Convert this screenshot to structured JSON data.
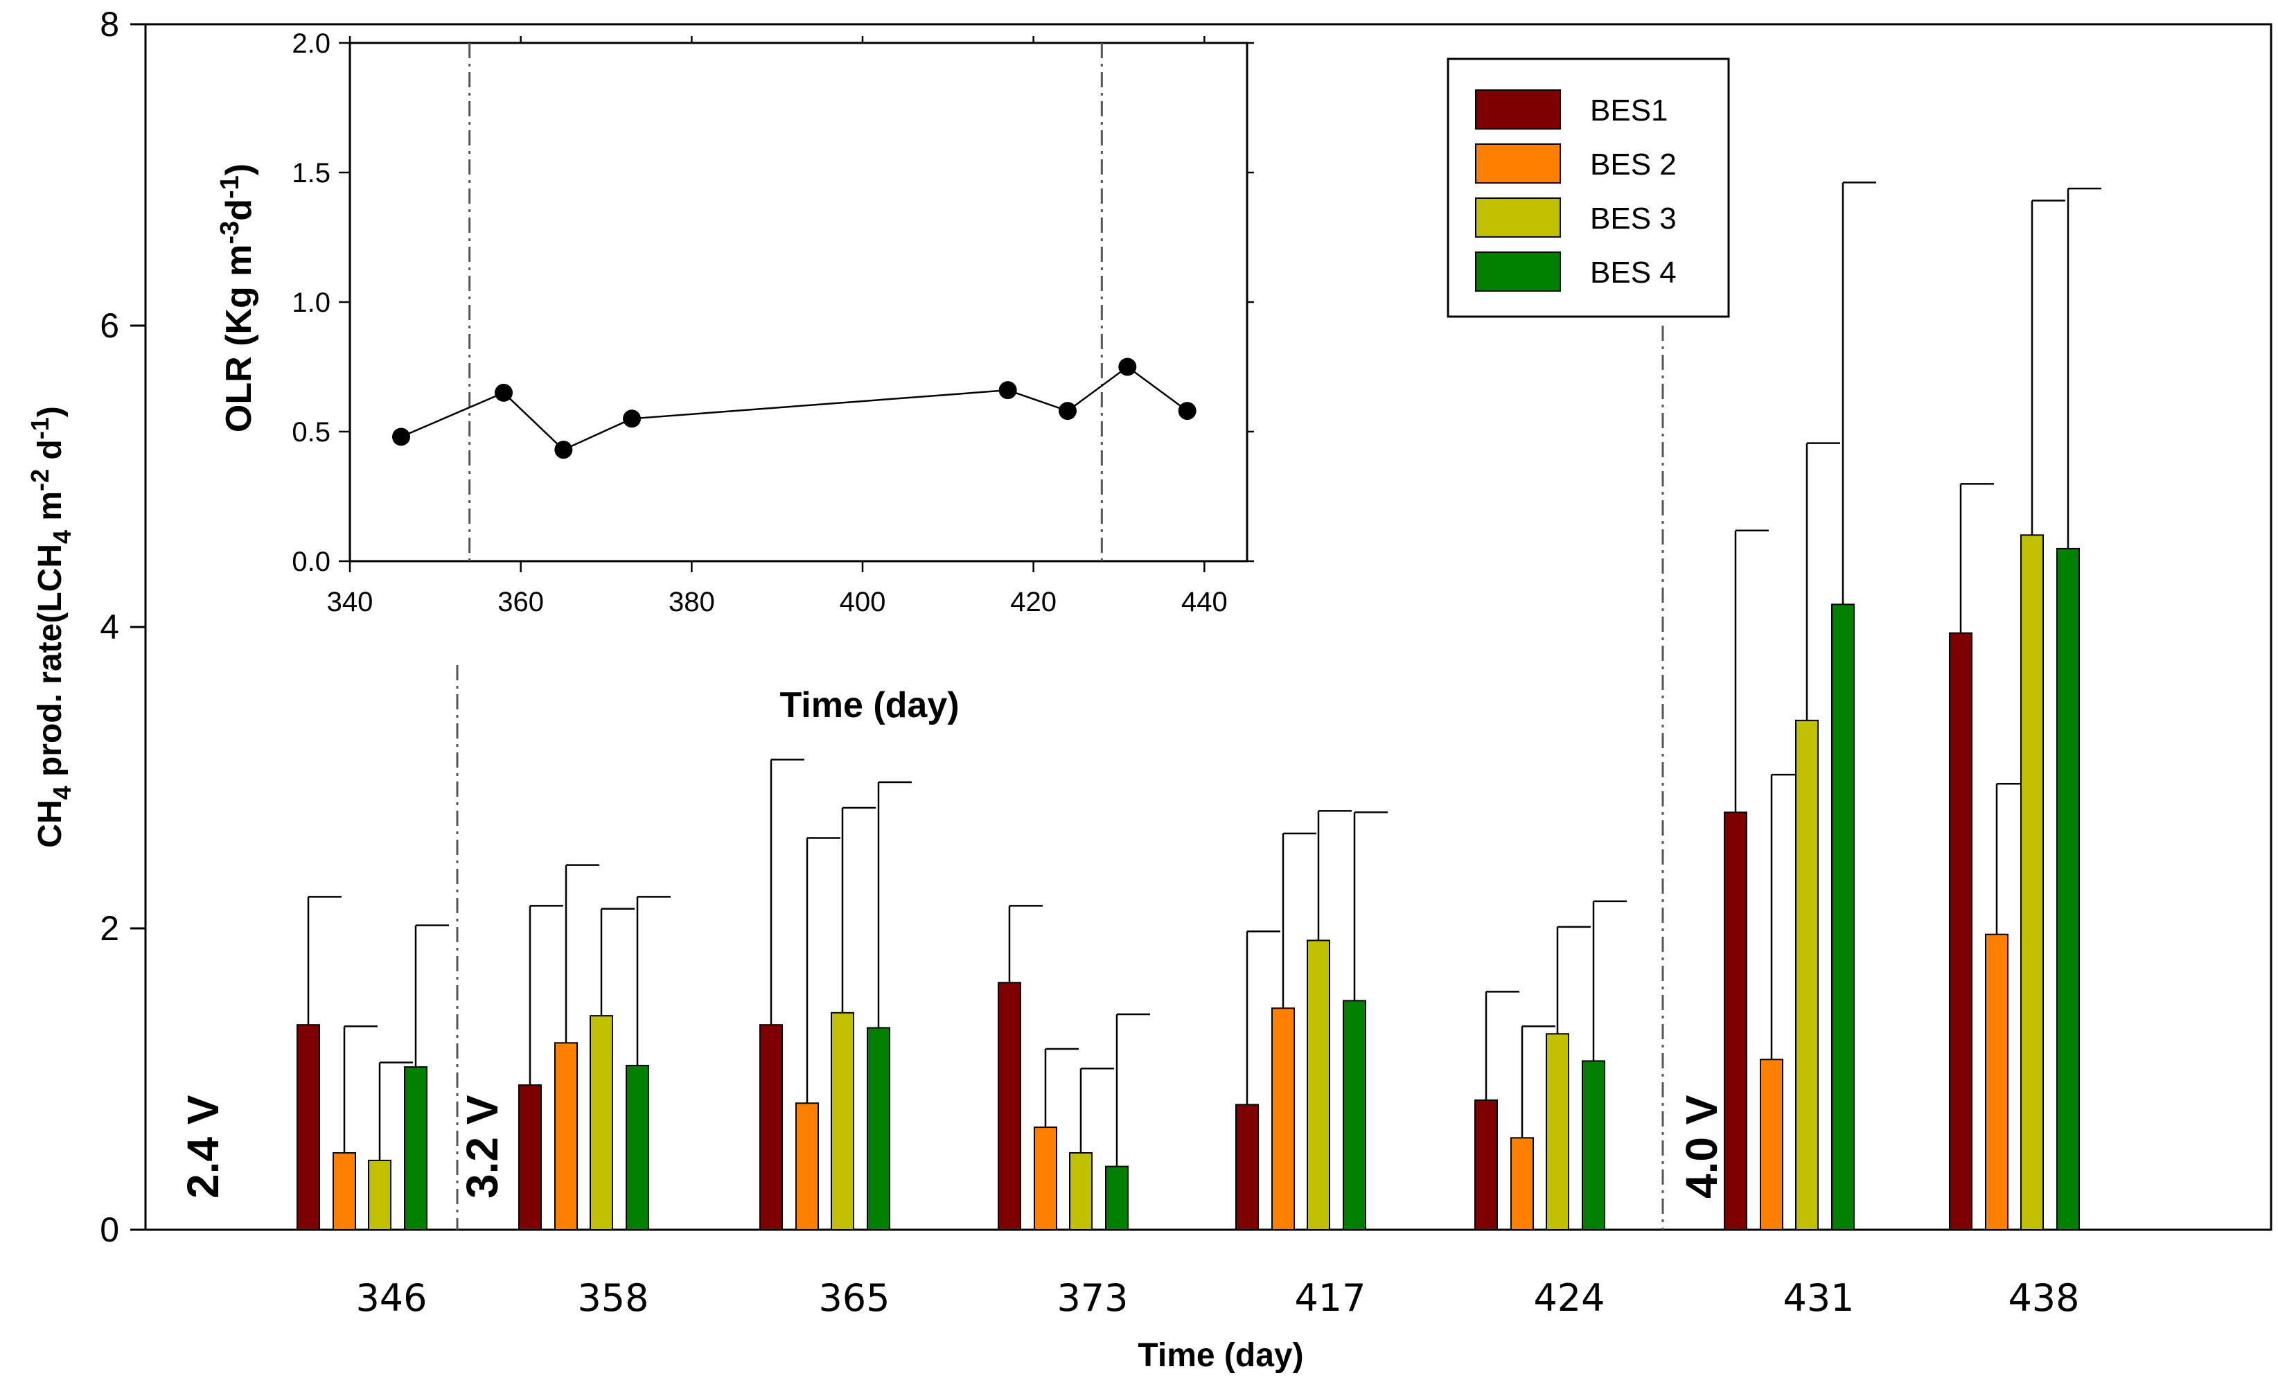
{
  "colors": {
    "BES1": "#7f0000",
    "BES 2": "#ff8000",
    "BES 3": "#c0c000",
    "BES 4": "#007f00"
  },
  "chart_data": [
    {
      "type": "bar",
      "title": "",
      "xlabel": "Time (day)",
      "ylabel_parts": [
        "CH",
        "4",
        " prod. rate(LCH",
        "4",
        " m",
        "-2",
        " d",
        "-1",
        ")"
      ],
      "categories": [
        "346",
        "358",
        "365",
        "373",
        "417",
        "424",
        "431",
        "438"
      ],
      "ylim": [
        0,
        8
      ],
      "yticks": [
        0,
        2,
        4,
        6,
        8
      ],
      "grid": false,
      "legend": "top-right",
      "series": [
        {
          "name": "BES1",
          "values": [
            1.36,
            0.96,
            1.36,
            1.64,
            0.83,
            0.86,
            2.77,
            3.96
          ],
          "errors": [
            0.85,
            1.19,
            1.76,
            0.51,
            1.15,
            0.72,
            1.87,
            0.99
          ]
        },
        {
          "name": "BES 2",
          "values": [
            0.51,
            1.24,
            0.84,
            0.68,
            1.47,
            0.61,
            1.13,
            1.96
          ],
          "errors": [
            0.84,
            1.18,
            1.76,
            0.52,
            1.16,
            0.74,
            1.89,
            1.0
          ]
        },
        {
          "name": "BES 3",
          "values": [
            0.46,
            1.42,
            1.44,
            0.51,
            1.92,
            1.3,
            3.38,
            4.61
          ],
          "errors": [
            0.65,
            0.71,
            1.36,
            0.56,
            0.86,
            0.71,
            1.84,
            2.22
          ]
        },
        {
          "name": "BES 4",
          "values": [
            1.08,
            1.09,
            1.34,
            0.42,
            1.52,
            1.12,
            4.15,
            4.52
          ],
          "errors": [
            0.94,
            1.12,
            1.63,
            1.01,
            1.25,
            1.06,
            2.8,
            2.39
          ]
        }
      ],
      "voltage_annotations": [
        {
          "label": "2.4 V",
          "before": "346"
        },
        {
          "label": "3.2 V",
          "before": "358"
        },
        {
          "label": "4.0 V",
          "before": "431"
        }
      ]
    },
    {
      "type": "line",
      "title": "",
      "xlabel": "Time (day)",
      "ylabel_parts": [
        "OLR (Kg m",
        "-3",
        "d",
        "-1",
        ")"
      ],
      "x": [
        346,
        358,
        365,
        373,
        417,
        424,
        431,
        438
      ],
      "y": [
        0.48,
        0.65,
        0.43,
        0.55,
        0.66,
        0.58,
        0.75,
        0.58
      ],
      "xlim": [
        340,
        445
      ],
      "ylim": [
        0,
        2.0
      ],
      "xticks": [
        340,
        360,
        380,
        400,
        420,
        440
      ],
      "ytick_labels": [
        "0.0",
        "0.5",
        "1.0",
        "1.5",
        "2.0"
      ],
      "vlines": [
        354,
        428
      ],
      "grid": false
    }
  ]
}
